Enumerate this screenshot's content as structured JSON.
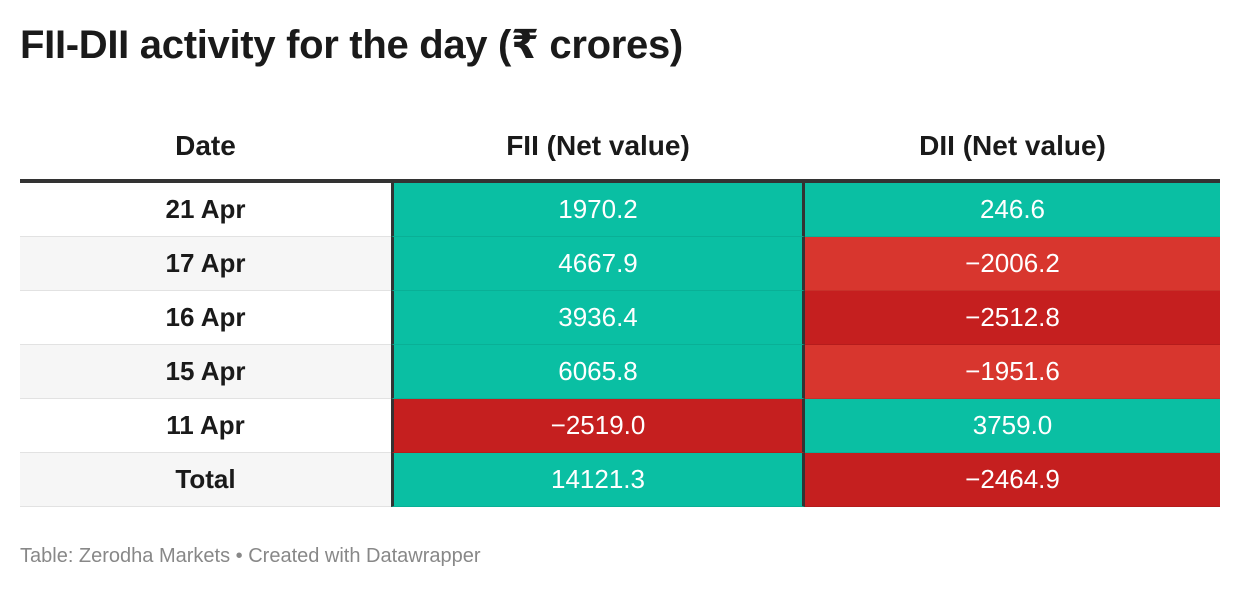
{
  "title": "FII-DII activity for the day (₹ crores)",
  "source": "Table: Zerodha Markets • Created with Datawrapper",
  "colors": {
    "positive": "#0abfa3",
    "negative_light": "#d8362e",
    "negative_dark": "#c51f1f"
  },
  "chart_data": {
    "type": "table",
    "title": "FII-DII activity for the day (₹ crores)",
    "columns": [
      "Date",
      "FII (Net value)",
      "DII (Net value)"
    ],
    "rows": [
      {
        "date": "21 Apr",
        "fii": "1970.2",
        "dii": "246.6",
        "fii_value": 1970.2,
        "dii_value": 246.6
      },
      {
        "date": "17 Apr",
        "fii": "4667.9",
        "dii": "−2006.2",
        "fii_value": 4667.9,
        "dii_value": -2006.2
      },
      {
        "date": "16 Apr",
        "fii": "3936.4",
        "dii": "−2512.8",
        "fii_value": 3936.4,
        "dii_value": -2512.8
      },
      {
        "date": "15 Apr",
        "fii": "6065.8",
        "dii": "−1951.6",
        "fii_value": 6065.8,
        "dii_value": -1951.6
      },
      {
        "date": "11 Apr",
        "fii": "−2519.0",
        "dii": "3759.0",
        "fii_value": -2519.0,
        "dii_value": 3759.0
      },
      {
        "date": "Total",
        "fii": "14121.3",
        "dii": "−2464.9",
        "fii_value": 14121.3,
        "dii_value": -2464.9
      }
    ]
  }
}
